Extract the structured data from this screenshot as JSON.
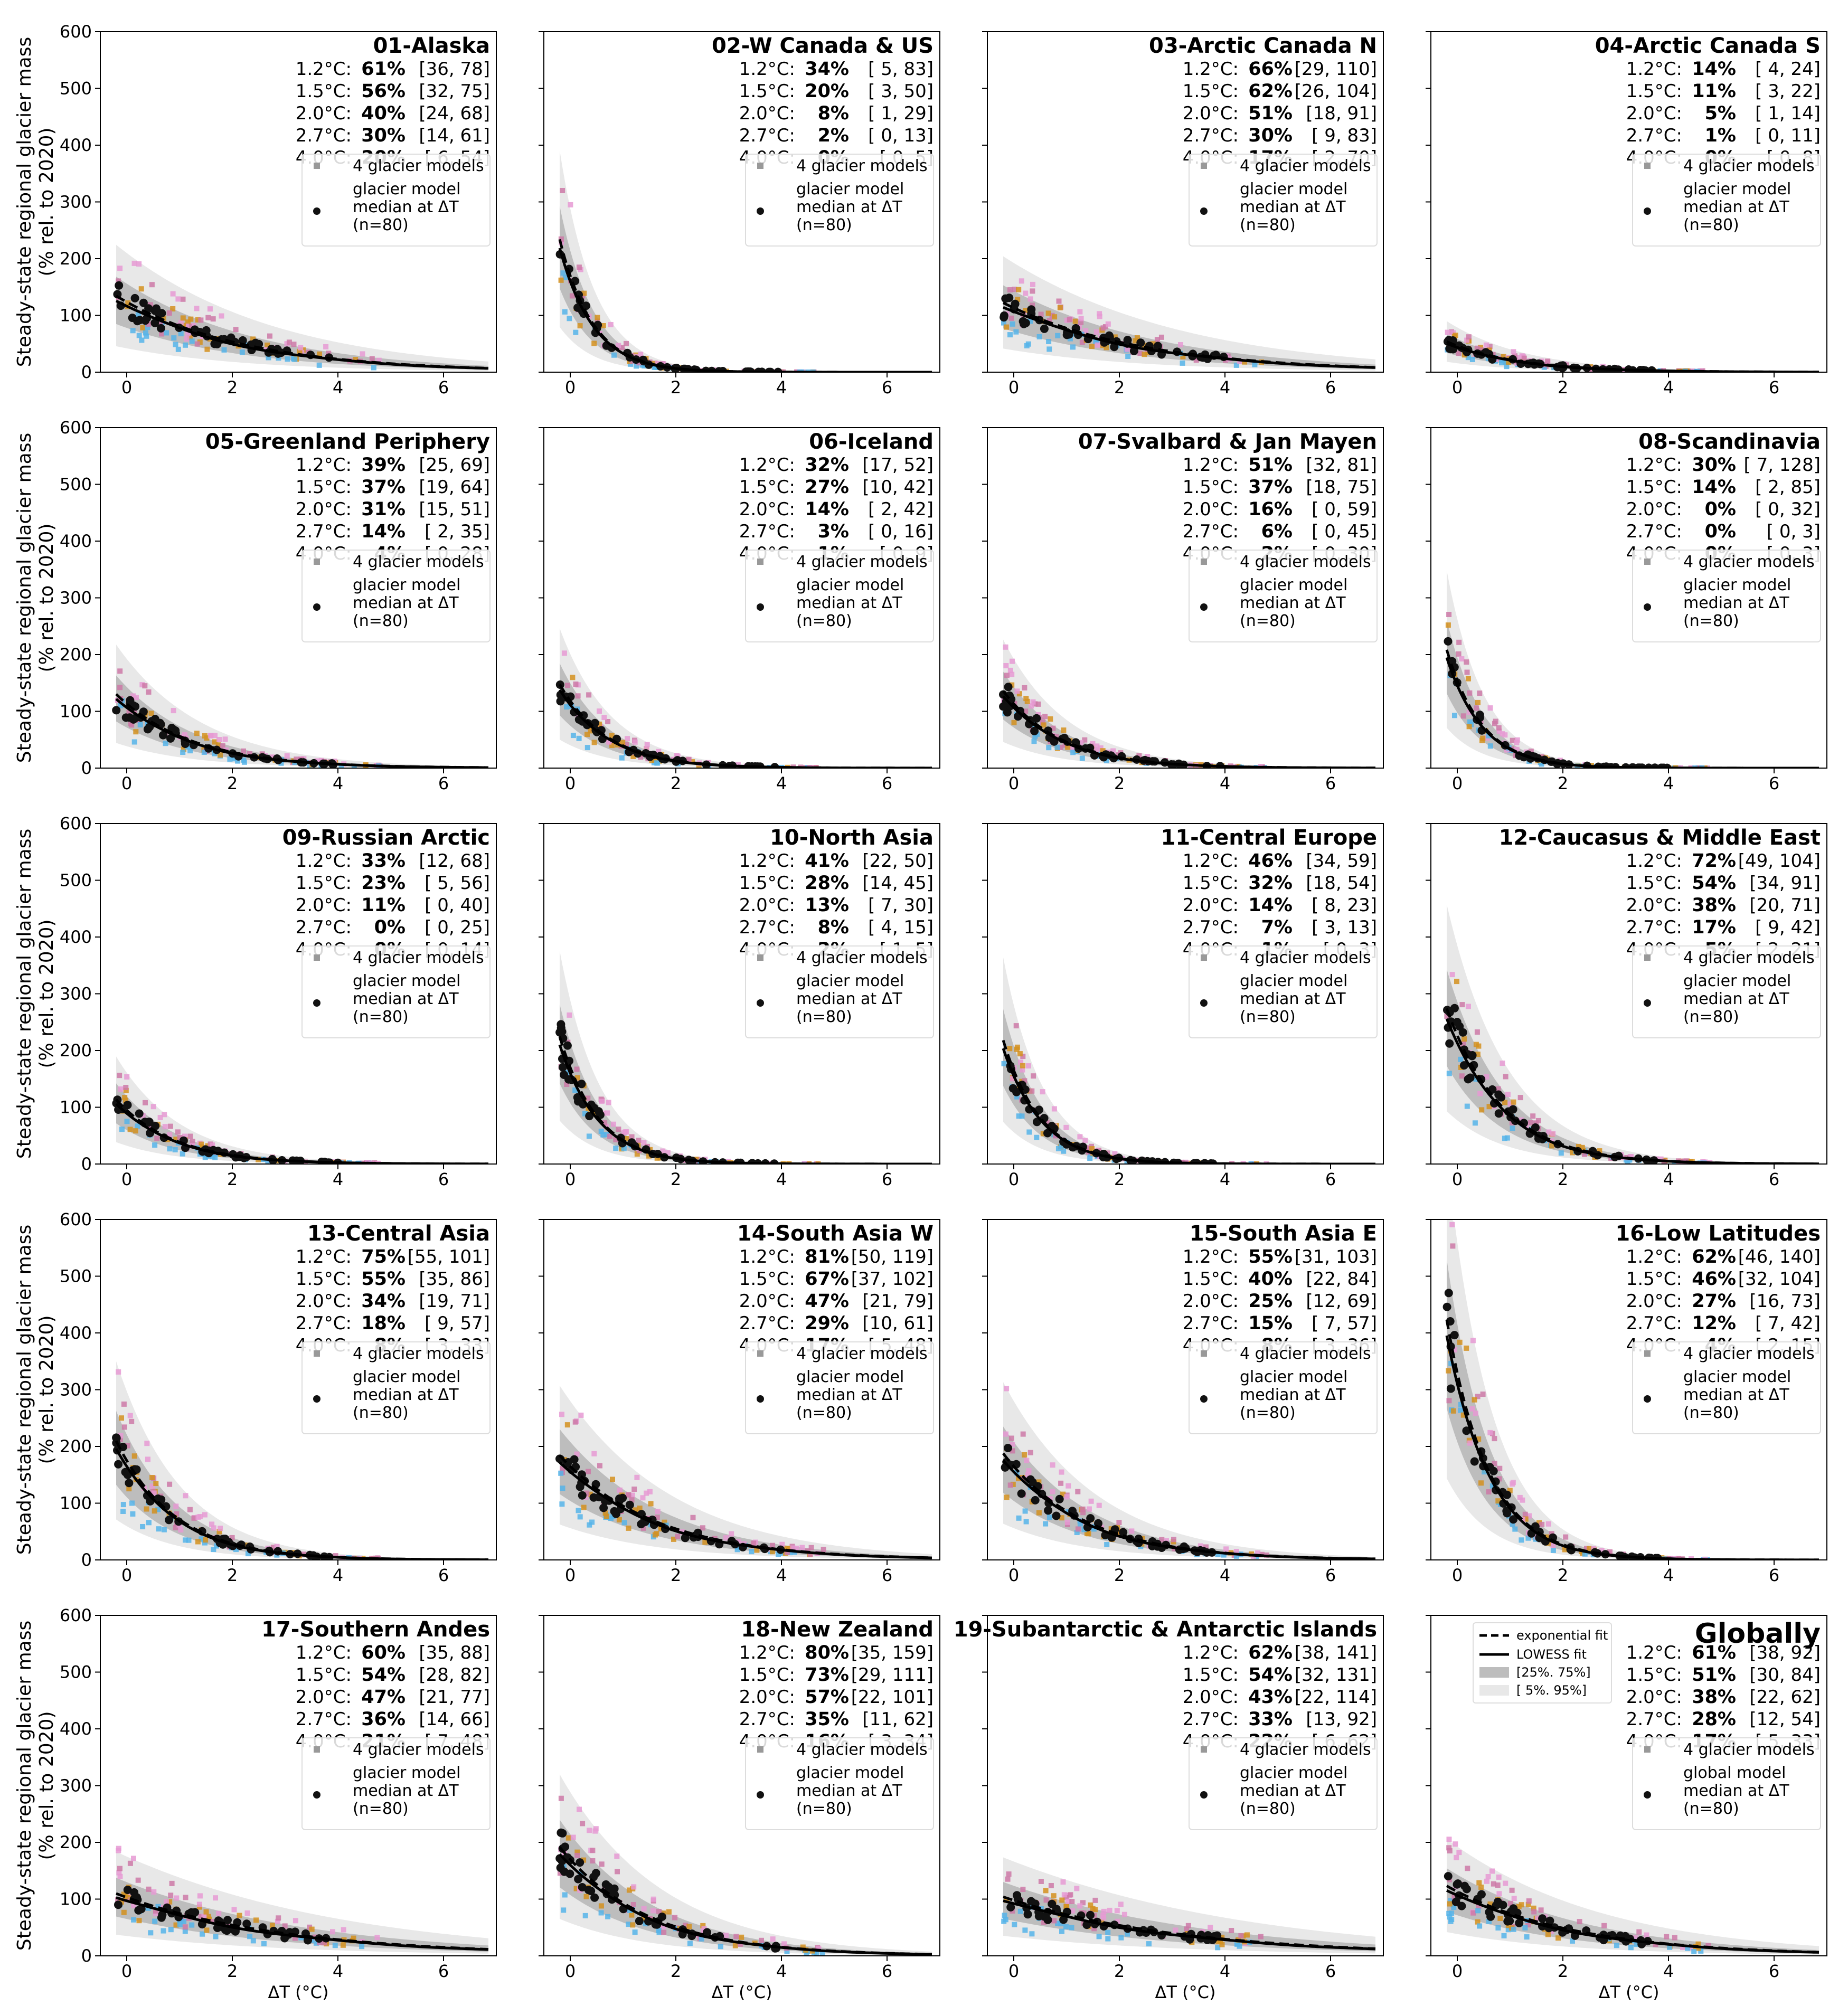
{
  "figure": {
    "ylabel_line1": "Steady-state regional glacier mass",
    "ylabel_line2": "(% rel. to 2020)",
    "xlabel": "ΔT (°C)",
    "xticks": [
      0,
      2,
      4,
      6
    ],
    "yticks": [
      0,
      100,
      200,
      300,
      400,
      500,
      600
    ],
    "xlim": [
      -0.5,
      7.0
    ],
    "ylim": [
      0,
      600
    ],
    "model_colors": [
      "#56b4e9",
      "#cc79a7",
      "#d4901e",
      "#e69ad3"
    ]
  },
  "common_legend": {
    "glacier_models": "4 glacier models",
    "median_line1": "glacier model",
    "median_line2": "median at ΔT",
    "median_line3": "(n=80)",
    "global_median_line1": "global model"
  },
  "fit_legend": {
    "exponential": "exponential fit",
    "lowess": "LOWESS fit",
    "band_inner": "[25%. 75%]",
    "band_outer": "[ 5%. 95%]"
  },
  "warming_levels": [
    "1.2°C:",
    "1.5°C:",
    "2.0°C:",
    "2.7°C:",
    "4.0°C:"
  ],
  "chart_data": [
    {
      "type": "scatter",
      "title": "01-Alaska",
      "a": 120,
      "k": 0.42,
      "pct": [
        "61%",
        "56%",
        "40%",
        "30%",
        "20%"
      ],
      "rng": [
        "[36,   78]",
        "[32,   75]",
        "[24,   68]",
        "[14,   61]",
        "[ 6,   54]"
      ]
    },
    {
      "type": "scatter",
      "title": "02-W Canada & US",
      "a": 165,
      "k": 1.6,
      "pct": [
        "34%",
        "20%",
        "8%",
        "2%",
        "0%"
      ],
      "rng": [
        "[ 5,   83]",
        "[ 3,   50]",
        "[ 1,   29]",
        "[ 0,   13]",
        "[ 0,    5]"
      ]
    },
    {
      "type": "scatter",
      "title": "03-Arctic Canada N",
      "a": 110,
      "k": 0.38,
      "pct": [
        "66%",
        "62%",
        "51%",
        "30%",
        "17%"
      ],
      "rng": [
        "[29, 110]",
        "[26, 104]",
        "[18,   91]",
        "[ 9,   83]",
        "[ 2,   70]"
      ]
    },
    {
      "type": "scatter",
      "title": "04-Arctic Canada S",
      "a": 45,
      "k": 0.75,
      "pct": [
        "14%",
        "11%",
        "5%",
        "1%",
        "0%"
      ],
      "rng": [
        "[ 4,   24]",
        "[ 3,   22]",
        "[ 1,   14]",
        "[ 0,   11]",
        "[ 0,    8]"
      ]
    },
    {
      "type": "scatter",
      "title": "05-Greenland Periphery",
      "a": 110,
      "k": 0.7,
      "pct": [
        "39%",
        "37%",
        "31%",
        "14%",
        "4%"
      ],
      "rng": [
        "[25,   69]",
        "[19,   64]",
        "[15,   51]",
        "[ 2,   35]",
        "[ 0,   28]"
      ]
    },
    {
      "type": "scatter",
      "title": "06-Iceland",
      "a": 115,
      "k": 1.1,
      "pct": [
        "32%",
        "27%",
        "14%",
        "3%",
        "1%"
      ],
      "rng": [
        "[17,   52]",
        "[10,   42]",
        "[ 2,   42]",
        "[ 0,   16]",
        "[ 0,    9]"
      ]
    },
    {
      "type": "scatter",
      "title": "07-Svalbard & Jan Mayen",
      "a": 110,
      "k": 0.9,
      "pct": [
        "51%",
        "37%",
        "16%",
        "6%",
        "2%"
      ],
      "rng": [
        "[32,   81]",
        "[18,   75]",
        "[ 0,   59]",
        "[ 0,   45]",
        "[ 0,   30]"
      ]
    },
    {
      "type": "scatter",
      "title": "08-Scandinavia",
      "a": 150,
      "k": 1.5,
      "pct": [
        "30%",
        "14%",
        "0%",
        "0%",
        "0%"
      ],
      "rng": [
        "[ 7, 128]",
        "[ 2,   85]",
        "[ 0,   32]",
        "[ 0,    3]",
        "[ 0,    3]"
      ]
    },
    {
      "type": "scatter",
      "title": "09-Russian Arctic",
      "a": 92,
      "k": 0.9,
      "pct": [
        "33%",
        "23%",
        "11%",
        "0%",
        "0%"
      ],
      "rng": [
        "[12,   68]",
        "[ 5,   56]",
        "[ 0,   40]",
        "[ 0,   25]",
        "[ 0,   14]"
      ]
    },
    {
      "type": "scatter",
      "title": "10-North Asia",
      "a": 165,
      "k": 1.4,
      "pct": [
        "41%",
        "28%",
        "13%",
        "8%",
        "2%"
      ],
      "rng": [
        "[22,   50]",
        "[14,   45]",
        "[ 7,   30]",
        "[ 4,   15]",
        "[ 1,    5]"
      ]
    },
    {
      "type": "scatter",
      "title": "11-Central Europe",
      "a": 160,
      "k": 1.4,
      "pct": [
        "46%",
        "32%",
        "14%",
        "7%",
        "1%"
      ],
      "rng": [
        "[34,   59]",
        "[18,   54]",
        "[ 8,   23]",
        "[ 3,   13]",
        "[ 0,    3]"
      ]
    },
    {
      "type": "scatter",
      "title": "12-Caucasus & Middle East",
      "a": 220,
      "k": 0.95,
      "pct": [
        "72%",
        "54%",
        "38%",
        "17%",
        "5%"
      ],
      "rng": [
        "[49, 104]",
        "[34,   91]",
        "[20,   71]",
        "[ 9,   42]",
        "[ 2,   21]"
      ]
    },
    {
      "type": "scatter",
      "title": "13-Central Asia",
      "a": 170,
      "k": 0.9,
      "pct": [
        "75%",
        "55%",
        "34%",
        "18%",
        "8%"
      ],
      "rng": [
        "[55, 101]",
        "[35,   86]",
        "[19,   71]",
        "[ 9,   57]",
        "[ 3,   33]"
      ]
    },
    {
      "type": "scatter",
      "title": "14-South Asia W",
      "a": 160,
      "k": 0.55,
      "pct": [
        "81%",
        "67%",
        "47%",
        "29%",
        "17%"
      ],
      "rng": [
        "[50, 119]",
        "[37, 102]",
        "[21,   79]",
        "[10,   61]",
        "[ 5,   48]"
      ]
    },
    {
      "type": "scatter",
      "title": "15-South Asia E",
      "a": 160,
      "k": 0.65,
      "pct": [
        "55%",
        "40%",
        "25%",
        "15%",
        "8%"
      ],
      "rng": [
        "[31, 103]",
        "[22,   84]",
        "[12,   69]",
        "[ 7,   57]",
        "[ 3,   36]"
      ]
    },
    {
      "type": "scatter",
      "title": "16-Low Latitudes",
      "a": 320,
      "k": 1.25,
      "pct": [
        "62%",
        "46%",
        "27%",
        "12%",
        "4%"
      ],
      "rng": [
        "[46, 140]",
        "[32, 104]",
        "[16,   73]",
        "[ 7,   42]",
        "[ 2,   15]"
      ]
    },
    {
      "type": "scatter",
      "title": "17-Southern Andes",
      "a": 100,
      "k": 0.32,
      "pct": [
        "60%",
        "54%",
        "47%",
        "36%",
        "21%"
      ],
      "rng": [
        "[35,   88]",
        "[28,   82]",
        "[21,   77]",
        "[14,   66]",
        "[ 7,   48]"
      ]
    },
    {
      "type": "scatter",
      "title": "18-New Zealand",
      "a": 165,
      "k": 0.6,
      "pct": [
        "80%",
        "73%",
        "57%",
        "35%",
        "16%"
      ],
      "rng": [
        "[35, 159]",
        "[29, 111]",
        "[22, 101]",
        "[11,   62]",
        "[ 3,   34]"
      ]
    },
    {
      "type": "scatter",
      "title": "19-Subantarctic & Antarctic Islands",
      "a": 95,
      "k": 0.3,
      "pct": [
        "62%",
        "54%",
        "43%",
        "33%",
        "22%"
      ],
      "rng": [
        "[38, 141]",
        "[32, 131]",
        "[22, 114]",
        "[13,   92]",
        "[ 6,   62]"
      ]
    },
    {
      "type": "scatter",
      "title": "Globally",
      "a": 110,
      "k": 0.42,
      "pct": [
        "61%",
        "51%",
        "38%",
        "28%",
        "17%"
      ],
      "rng": [
        "[38,   92]",
        "[30,   84]",
        "[22,   62]",
        "[12,   54]",
        "[ 5,   33]"
      ]
    }
  ]
}
